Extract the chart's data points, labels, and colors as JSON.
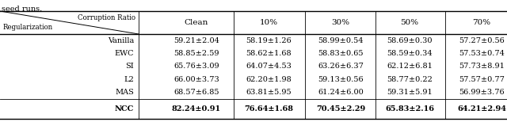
{
  "header_row": [
    "Clean",
    "10%",
    "30%",
    "50%",
    "70%"
  ],
  "col0_label_top": "Corruption Ratio",
  "col0_label_bottom": "Regularization",
  "rows": [
    [
      "Vanilla",
      "59.21±2.04",
      "58.19±1.26",
      "58.99±0.54",
      "58.69±0.30",
      "57.27±0.56"
    ],
    [
      "EWC",
      "58.85±2.59",
      "58.62±1.68",
      "58.83±0.65",
      "58.59±0.34",
      "57.53±0.74"
    ],
    [
      "SI",
      "65.76±3.09",
      "64.07±4.53",
      "63.26±6.37",
      "62.12±6.81",
      "57.73±8.91"
    ],
    [
      "L2",
      "66.00±3.73",
      "62.20±1.98",
      "59.13±0.56",
      "58.77±0.22",
      "57.57±0.77"
    ],
    [
      "MAS",
      "68.57±6.85",
      "63.81±5.95",
      "61.24±6.00",
      "59.31±5.91",
      "56.99±3.76"
    ],
    [
      "NCC",
      "82.24±0.91",
      "76.64±1.68",
      "70.45±2.29",
      "65.83±2.16",
      "64.21±2.94"
    ]
  ],
  "bold_row": 5,
  "top_text": "seed runs.",
  "fig_width": 6.4,
  "fig_height": 1.54,
  "dpi": 100,
  "fontsize": 7.0,
  "header_fontsize": 7.5
}
